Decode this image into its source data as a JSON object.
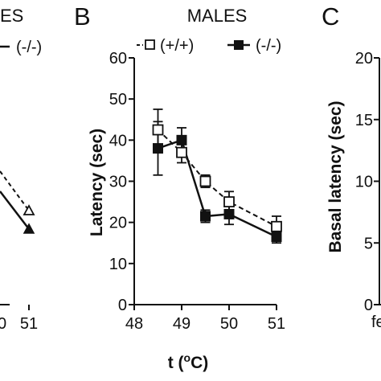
{
  "chart_data": [
    {
      "panel": "A",
      "type": "line",
      "title": "MALES",
      "legend": [
        "(+/+)",
        "(-/-)"
      ],
      "x": [
        51
      ],
      "xtick_labels": [
        "51"
      ],
      "series": [
        {
          "name": "(+/+)",
          "values": [
            22
          ],
          "style": "dashed",
          "marker": "open-triangle"
        },
        {
          "name": "(-/-)",
          "values": [
            18.5
          ],
          "style": "solid",
          "marker": "filled-triangle"
        }
      ]
    },
    {
      "panel": "B",
      "type": "line",
      "title": "MALES",
      "xlabel": "t (°C)",
      "ylabel": "Latency (sec)",
      "xlim": [
        48,
        51
      ],
      "ylim": [
        0,
        60
      ],
      "xticks": [
        48,
        49,
        50,
        51
      ],
      "xtick_labels": [
        "48",
        "49",
        "50",
        "51"
      ],
      "yticks": [
        0,
        10,
        20,
        30,
        40,
        50,
        60
      ],
      "ytick_labels": [
        "0",
        "10",
        "20",
        "30",
        "40",
        "50",
        "60"
      ],
      "x": [
        48.5,
        49,
        49.5,
        50,
        51
      ],
      "series": [
        {
          "name": "(+/+)",
          "values": [
            42.5,
            37,
            30,
            25,
            19
          ],
          "errors": [
            5,
            2.5,
            1.5,
            2.5,
            2.5
          ],
          "style": "dashed",
          "marker": "open-square"
        },
        {
          "name": "(-/-)",
          "values": [
            38,
            40,
            21.5,
            22,
            16.5
          ],
          "errors": [
            6.5,
            3,
            1.5,
            2.5,
            1.5
          ],
          "style": "solid",
          "marker": "filled-square"
        }
      ]
    },
    {
      "panel": "C",
      "type": "bar",
      "ylabel": "Basal latency (sec)",
      "ylim": [
        0,
        20
      ],
      "yticks": [
        0,
        5,
        10,
        15,
        20
      ],
      "ytick_labels": [
        "0",
        "5",
        "10",
        "15",
        "20"
      ],
      "xtick_labels": [
        "fe"
      ]
    }
  ],
  "labels": {
    "panel_a_title": "ES",
    "panel_a_legend_ko": "(-/-)",
    "panel_a_xtick_partial": "0",
    "panel_b_letter": "B",
    "panel_b_title": "MALES",
    "panel_b_legend_wt": "(+/+)",
    "panel_b_legend_ko": "(-/-)",
    "panel_c_letter": "C",
    "panel_c_xtick_partial": "fe"
  }
}
